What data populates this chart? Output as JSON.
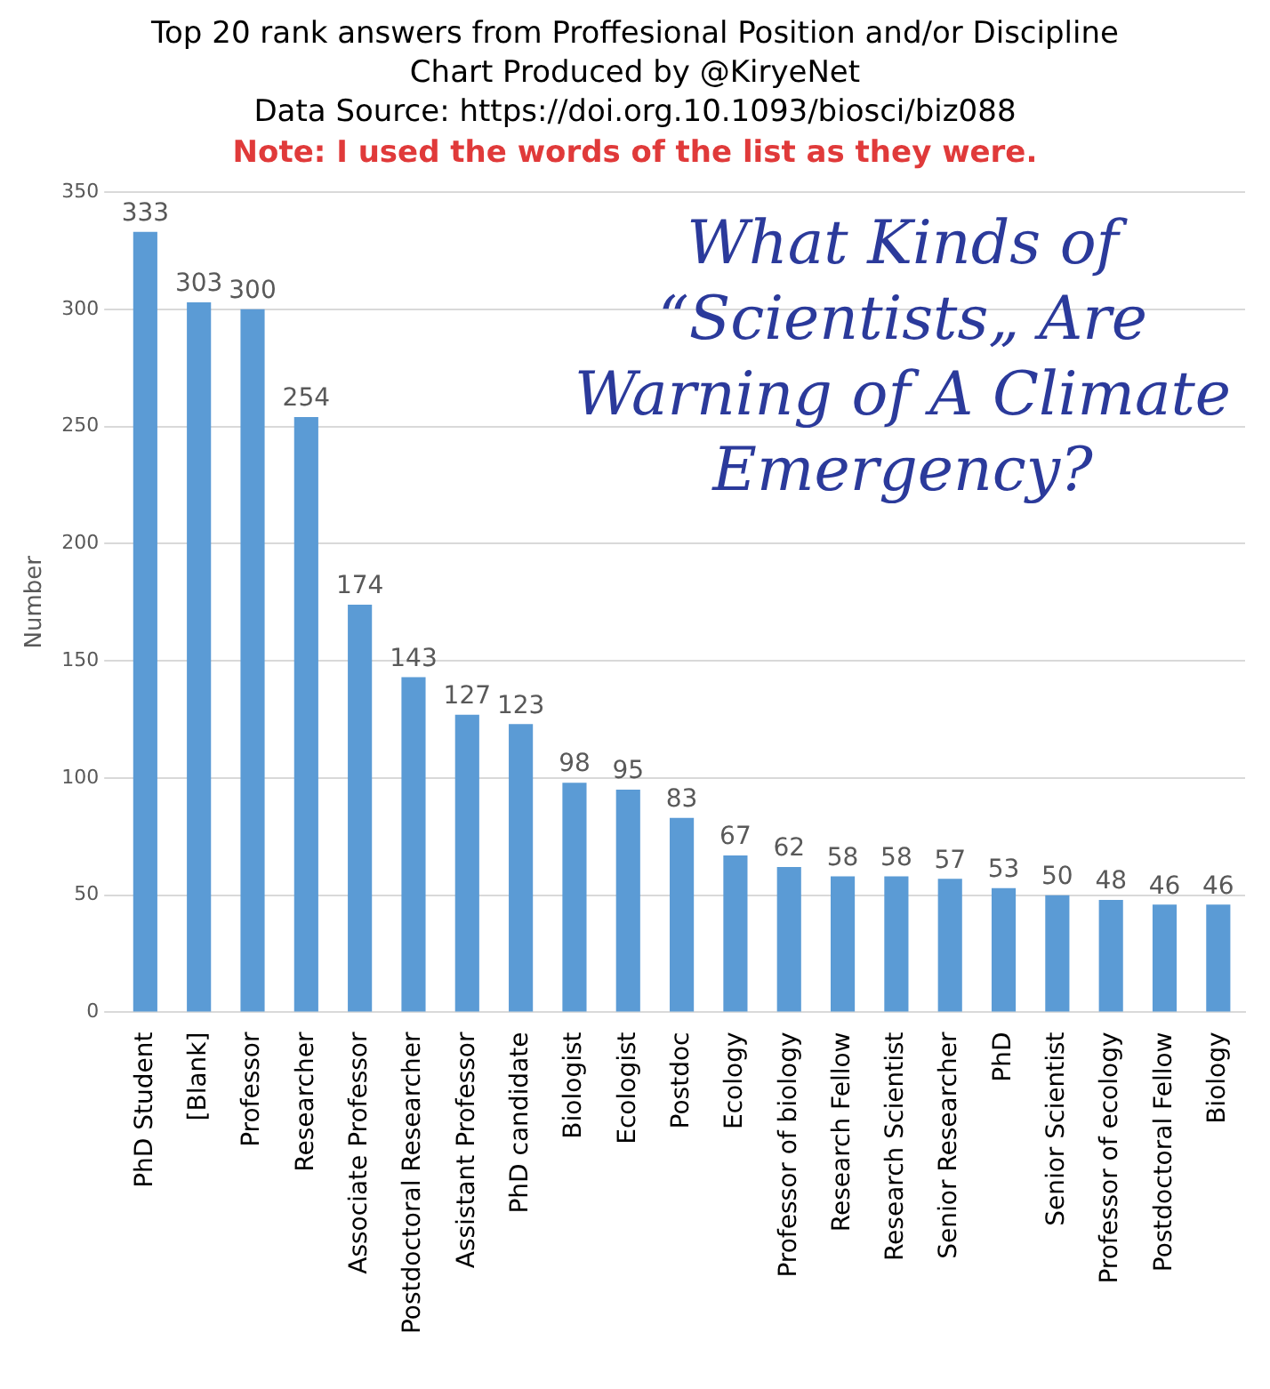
{
  "chart_data": {
    "type": "bar",
    "title": "Top 20 rank answers from Proffesional Position and/or Discipline",
    "annotations": [
      "Chart Produced by @KiryeNet",
      "Data Source: https://doi.org.10.1093/biosci/biz088",
      "Note: I used the words of the list as they were.",
      "What Kinds of “Scientists„ Are Warning of A Climate Emergency?"
    ],
    "categories": [
      "PhD Student",
      "[Blank]",
      "Professor",
      "Researcher",
      "Associate Professor",
      "Postdoctoral Researcher",
      "Assistant Professor",
      "PhD candidate",
      "Biologist",
      "Ecologist",
      "Postdoc",
      "Ecology",
      "Professor of biology",
      "Research Fellow",
      "Research Scientist",
      "Senior Researcher",
      "PhD",
      "Senior Scientist",
      "Professor of ecology",
      "Postdoctoral Fellow",
      "Biology"
    ],
    "values": [
      333,
      303,
      300,
      254,
      174,
      143,
      127,
      123,
      98,
      95,
      83,
      67,
      62,
      58,
      58,
      57,
      53,
      50,
      48,
      46,
      46
    ],
    "color": "#5b9bd5",
    "ylabel": "Number",
    "ylim": [
      0,
      350
    ],
    "yticks": [
      0,
      50,
      100,
      150,
      200,
      250,
      300,
      350
    ],
    "grid": "y",
    "data_labels": true,
    "legend": false
  }
}
